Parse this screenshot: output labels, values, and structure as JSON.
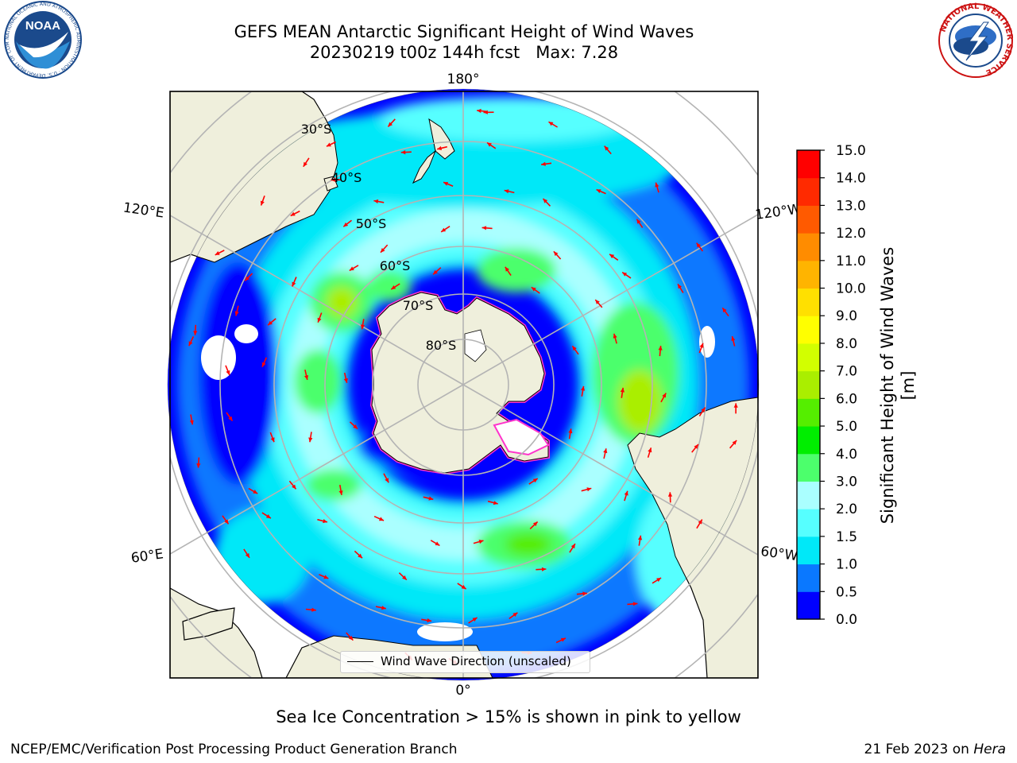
{
  "header": {
    "title_line1": "GEFS MEAN Antarctic Significant Height of Wind Waves",
    "title_line2": "20230219 t00z 144h fcst   Max: 7.28"
  },
  "logos": {
    "noaa": {
      "text": "NOAA",
      "ring_text": "NATIONAL OCEANIC AND ATMOSPHERIC ADMINISTRATION · U.S. DEPARTMENT OF COMMERCE"
    },
    "nws": {
      "ring_text": "NATIONAL WEATHER SERVICE"
    }
  },
  "map": {
    "projection": "south-polar-stereographic",
    "longitude_labels": {
      "top": "180°",
      "bottom": "0°",
      "upper_left": "120°E",
      "upper_right": "120°W",
      "lower_left": "60°E",
      "lower_right": "60°W"
    },
    "latitude_labels": [
      "30°S",
      "40°S",
      "50°S",
      "60°S",
      "70°S",
      "80°S"
    ],
    "colors": {
      "land": "#efefdc",
      "ice_edge": "#ff33cc",
      "vector": "#ff0000",
      "grid": "#b4b4b4",
      "sea_ice": "#ffffff"
    },
    "legend_label": "Wind Wave Direction (unscaled)"
  },
  "colorbar": {
    "label": "Significant Height of Wind Waves [m]",
    "ticks": [
      "0.0",
      "0.5",
      "1.0",
      "1.5",
      "2.0",
      "3.0",
      "4.0",
      "5.0",
      "6.0",
      "7.0",
      "8.0",
      "9.0",
      "10.0",
      "11.0",
      "12.0",
      "13.0",
      "14.0",
      "15.0"
    ],
    "colors": [
      "#0000ff",
      "#0a78ff",
      "#00e8f8",
      "#56ffff",
      "#aaffff",
      "#4cff6c",
      "#00ee00",
      "#55ee00",
      "#aaee00",
      "#d2ff00",
      "#ffff00",
      "#ffe000",
      "#ffb400",
      "#ff8c00",
      "#ff5a00",
      "#ff2a00",
      "#ff0000"
    ]
  },
  "footer": {
    "note": "Sea Ice Concentration > 15% is shown in pink to yellow",
    "left": "NCEP/EMC/Verification Post Processing Product Generation Branch",
    "right_prefix": "21 Feb 2023 on ",
    "right_host": "Hera"
  }
}
